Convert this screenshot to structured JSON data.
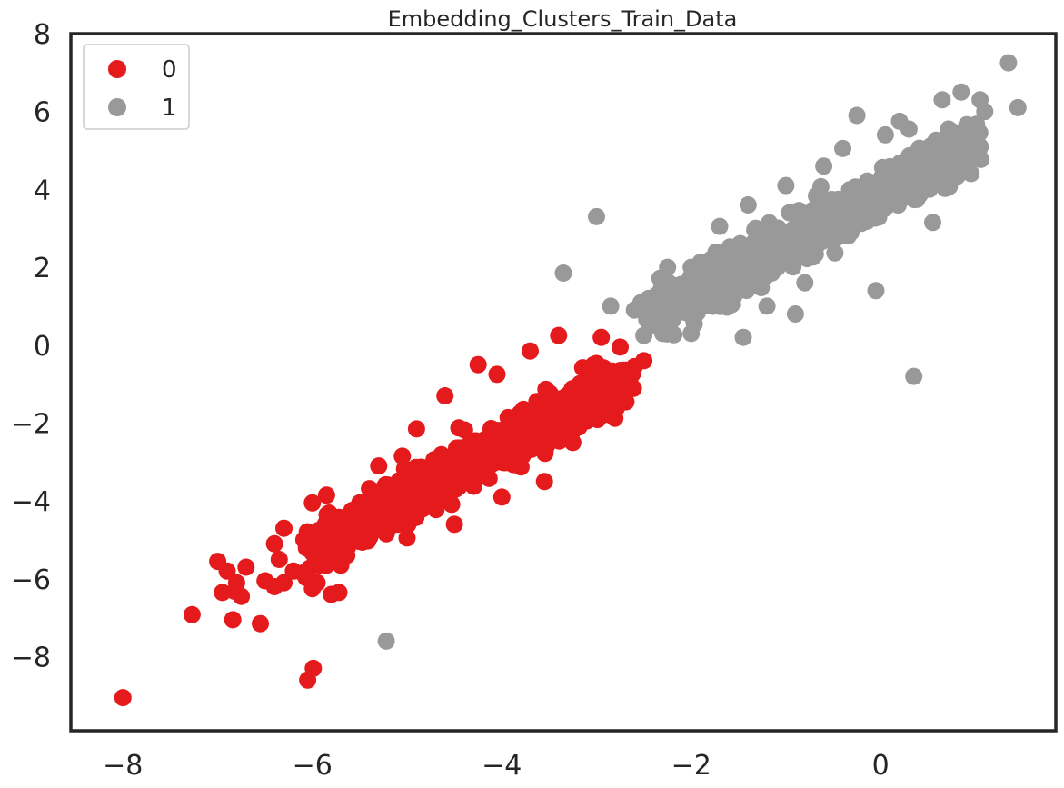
{
  "chart_data": {
    "type": "scatter",
    "title": "Embedding_Clusters_Train_Data",
    "xlabel": "",
    "ylabel": "",
    "xlim": [
      -8.55,
      1.85
    ],
    "ylim": [
      -9.9,
      8.0
    ],
    "x_ticks": [
      -8,
      -6,
      -4,
      -2,
      0
    ],
    "y_ticks": [
      8,
      6,
      4,
      2,
      0,
      -2,
      -4,
      -6,
      -8
    ],
    "x_tick_labels": [
      "−8",
      "−6",
      "−4",
      "−2",
      "0"
    ],
    "y_tick_labels": [
      "8",
      "6",
      "4",
      "2",
      "0",
      "−2",
      "−4",
      "−6",
      "−8"
    ],
    "grid": false,
    "legend": {
      "placement": "top-left"
    },
    "series": [
      {
        "name": "0",
        "color": "#e41a1c",
        "cluster": {
          "x_from": -6.0,
          "x_to": -2.7,
          "slope": 1.3,
          "intercept": 2.6,
          "spread": 0.28,
          "count": 1200
        },
        "points": [
          [
            -8.0,
            -9.05
          ],
          [
            -7.27,
            -6.92
          ],
          [
            -6.84,
            -7.05
          ],
          [
            -6.55,
            -7.15
          ],
          [
            -6.75,
            -6.45
          ],
          [
            -7.0,
            -5.55
          ],
          [
            -6.9,
            -5.8
          ],
          [
            -6.8,
            -6.1
          ],
          [
            -6.95,
            -6.35
          ],
          [
            -6.82,
            -6.32
          ],
          [
            -6.7,
            -5.7
          ],
          [
            -6.5,
            -6.05
          ],
          [
            -6.4,
            -6.2
          ],
          [
            -6.3,
            -6.1
          ],
          [
            -6.2,
            -5.8
          ],
          [
            -6.1,
            -5.85
          ],
          [
            -5.95,
            -6.1
          ],
          [
            -5.8,
            -6.4
          ],
          [
            -5.72,
            -6.35
          ],
          [
            -6.05,
            -8.6
          ],
          [
            -5.99,
            -8.3
          ],
          [
            -6.3,
            -4.7
          ],
          [
            -6.4,
            -5.1
          ],
          [
            -6.35,
            -5.5
          ],
          [
            -6.0,
            -4.05
          ],
          [
            -5.85,
            -3.85
          ],
          [
            -5.7,
            -5.65
          ],
          [
            -4.9,
            -2.15
          ],
          [
            -4.6,
            -1.3
          ],
          [
            -4.25,
            -0.5
          ],
          [
            -4.05,
            -0.75
          ],
          [
            -3.7,
            -0.15
          ],
          [
            -3.4,
            0.25
          ],
          [
            -2.95,
            0.2
          ],
          [
            -2.75,
            -0.05
          ],
          [
            -2.6,
            -0.55
          ],
          [
            -2.5,
            -0.4
          ],
          [
            -3.25,
            -2.5
          ],
          [
            -3.55,
            -3.5
          ],
          [
            -4.0,
            -3.9
          ],
          [
            -4.5,
            -4.6
          ],
          [
            -5.0,
            -4.95
          ],
          [
            -5.5,
            -4.05
          ],
          [
            -5.3,
            -3.1
          ],
          [
            -5.05,
            -2.85
          ]
        ]
      },
      {
        "name": "1",
        "color": "#999999",
        "cluster": {
          "x_from": -2.4,
          "x_to": 1.0,
          "slope": 1.3,
          "intercept": 3.9,
          "spread": 0.3,
          "count": 1100
        },
        "points": [
          [
            1.35,
            7.25
          ],
          [
            1.45,
            6.1
          ],
          [
            0.85,
            6.5
          ],
          [
            0.65,
            6.3
          ],
          [
            1.05,
            6.3
          ],
          [
            1.1,
            6.0
          ],
          [
            0.9,
            4.7
          ],
          [
            0.75,
            4.65
          ],
          [
            0.5,
            4.15
          ],
          [
            0.4,
            3.85
          ],
          [
            0.55,
            3.15
          ],
          [
            0.2,
            5.75
          ],
          [
            -0.25,
            5.9
          ],
          [
            -0.05,
            1.4
          ],
          [
            0.35,
            -0.8
          ],
          [
            -0.9,
            0.8
          ],
          [
            -1.45,
            0.2
          ],
          [
            -2.5,
            0.25
          ],
          [
            -2.3,
            0.3
          ],
          [
            -2.0,
            0.3
          ],
          [
            -2.85,
            1.0
          ],
          [
            -2.25,
            2.0
          ],
          [
            -2.0,
            2.0
          ],
          [
            -3.35,
            1.85
          ],
          [
            -3.0,
            3.3
          ],
          [
            -5.22,
            -7.6
          ],
          [
            -1.7,
            3.05
          ],
          [
            -1.4,
            3.6
          ],
          [
            -1.0,
            4.1
          ],
          [
            -0.6,
            4.6
          ],
          [
            -0.4,
            5.05
          ],
          [
            0.05,
            5.4
          ],
          [
            0.3,
            5.55
          ],
          [
            -1.2,
            1.0
          ],
          [
            -0.8,
            1.6
          ],
          [
            -2.6,
            0.9
          ],
          [
            -2.45,
            1.2
          ]
        ]
      }
    ]
  }
}
